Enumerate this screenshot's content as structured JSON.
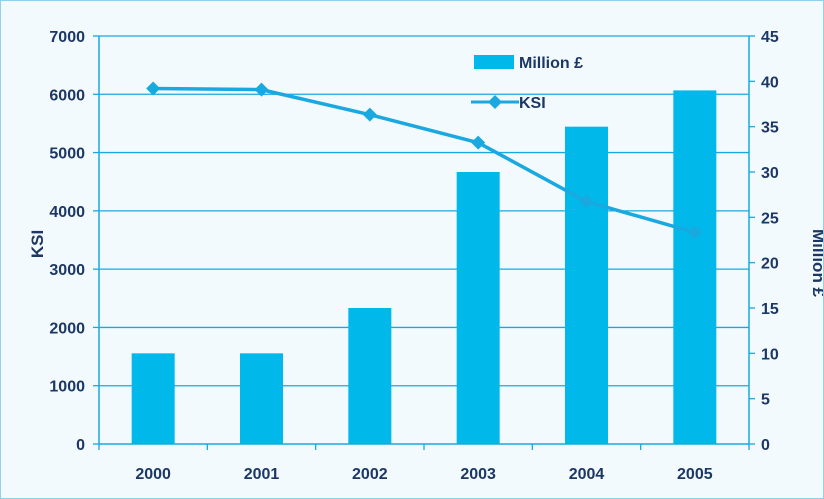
{
  "chart_data": {
    "type": "bar",
    "categories": [
      "2000",
      "2001",
      "2002",
      "2003",
      "2004",
      "2005"
    ],
    "series": [
      {
        "name": "Million £",
        "type": "bar",
        "axis": "right",
        "values": [
          10,
          10,
          15,
          30,
          35,
          39
        ]
      },
      {
        "name": "KSI",
        "type": "line",
        "axis": "left",
        "values": [
          6100,
          6080,
          5650,
          5170,
          4160,
          3630
        ]
      }
    ],
    "y_left": {
      "label": "KSI",
      "ticks": [
        "0",
        "1000",
        "2000",
        "3000",
        "4000",
        "5000",
        "6000",
        "7000"
      ],
      "range": [
        0,
        7000
      ]
    },
    "y_right": {
      "label": "Million £",
      "ticks": [
        "0",
        "5",
        "10",
        "15",
        "20",
        "25",
        "30",
        "35",
        "40",
        "45"
      ],
      "range": [
        0,
        45
      ]
    },
    "legend_position": "top-right",
    "grid": true,
    "colors": {
      "bar": "#00b9ea",
      "line": "#1aa8e0",
      "grid": "#1aa8e0",
      "text": "#1c3764"
    }
  }
}
